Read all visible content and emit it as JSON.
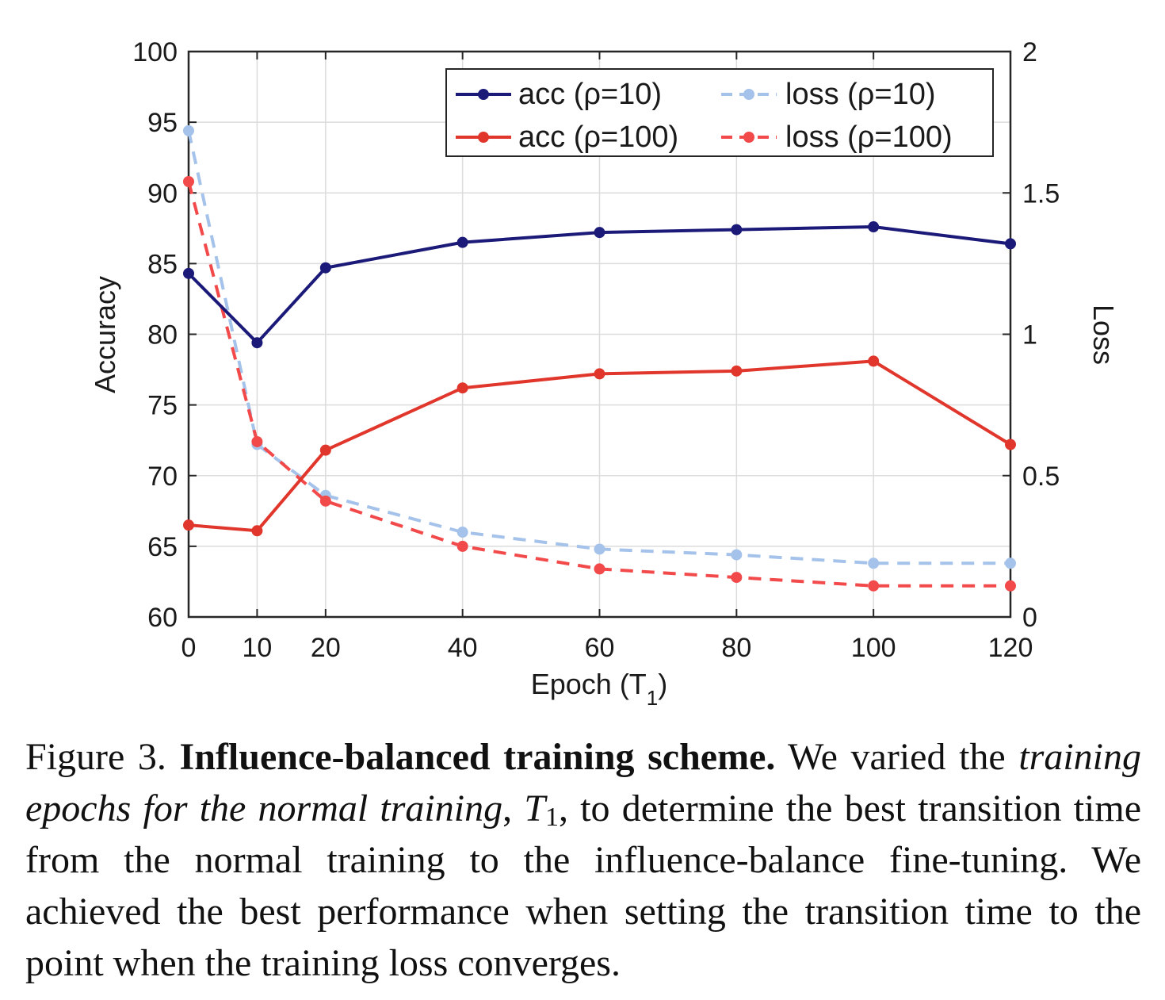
{
  "chart_data": {
    "type": "line",
    "x": [
      0,
      10,
      20,
      40,
      60,
      80,
      100,
      120
    ],
    "xlabel_main": "Epoch (T",
    "xlabel_sub": "1",
    "xlabel_close": ")",
    "xticks": [
      "0",
      "10",
      "20",
      "40",
      "60",
      "80",
      "100",
      "120"
    ],
    "ylabel": "Accuracy",
    "y2label": "Loss",
    "ylim": [
      60,
      100
    ],
    "y2lim": [
      0,
      2
    ],
    "yticks": [
      "60",
      "65",
      "70",
      "75",
      "80",
      "85",
      "90",
      "95",
      "100"
    ],
    "y2ticks": [
      "0",
      "0.5",
      "1",
      "1.5",
      "2"
    ],
    "grid": true,
    "legend_position": "top-right",
    "series": [
      {
        "name": "acc (ρ=10)",
        "axis": "left",
        "style": "solid",
        "color": "#1b1a78",
        "values": [
          84.3,
          79.4,
          84.7,
          86.5,
          87.2,
          87.4,
          87.6,
          86.4
        ]
      },
      {
        "name": "acc (ρ=100)",
        "axis": "left",
        "style": "solid",
        "color": "#e0362b",
        "values": [
          66.5,
          66.1,
          71.8,
          76.2,
          77.2,
          77.4,
          78.1,
          72.2
        ]
      },
      {
        "name": "loss (ρ=10)",
        "axis": "right",
        "style": "dashed",
        "color": "#a5c3ea",
        "values": [
          1.72,
          0.61,
          0.43,
          0.3,
          0.24,
          0.22,
          0.19,
          0.19
        ]
      },
      {
        "name": "loss (ρ=100)",
        "axis": "right",
        "style": "dashed",
        "color": "#f2494a",
        "values": [
          1.54,
          0.62,
          0.41,
          0.25,
          0.17,
          0.14,
          0.11,
          0.11
        ]
      }
    ]
  },
  "caption": {
    "label": "Figure 3.",
    "bold": "Influence-balanced training scheme.",
    "text1": "We varied the",
    "italic": "training epochs for the normal training",
    "comma": ",",
    "math_main": "T",
    "math_sub": "1",
    "text2": ", to determine the best transition time from the normal training to the influence-balance fine-tuning. We achieved the best performance when setting the transition time to the point when the training loss converges."
  }
}
